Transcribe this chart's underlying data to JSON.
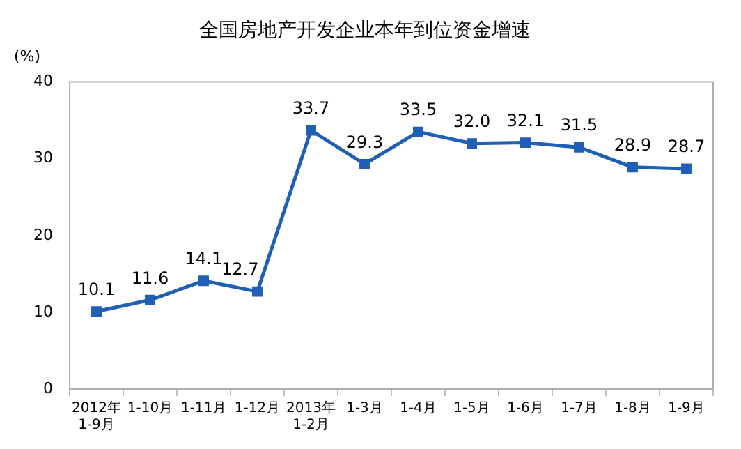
{
  "chart_data": {
    "type": "line",
    "title": "全国房地产开发企业本年到位资金增速",
    "ylabel": "(%)",
    "categories": [
      "2012年\n1-9月",
      "1-10月",
      "1-11月",
      "1-12月",
      "2013年\n1-2月",
      "1-3月",
      "1-4月",
      "1-5月",
      "1-6月",
      "1-7月",
      "1-8月",
      "1-9月"
    ],
    "series": [
      {
        "color": "#1f5fb4",
        "values": [
          10.1,
          11.6,
          14.1,
          12.7,
          33.7,
          29.3,
          33.5,
          32.0,
          32.1,
          31.5,
          28.9,
          28.7
        ]
      }
    ],
    "value_labels": [
      "10.1",
      "11.6",
      "14.1",
      "12.7",
      "33.7",
      "29.3",
      "33.5",
      "32.0",
      "32.1",
      "31.5",
      "28.9",
      "28.7"
    ],
    "ylim": [
      0,
      40
    ],
    "yticks": [
      0,
      10,
      20,
      30,
      40
    ],
    "grid": false,
    "legend": false,
    "marker": "square",
    "line_style": "solid"
  }
}
